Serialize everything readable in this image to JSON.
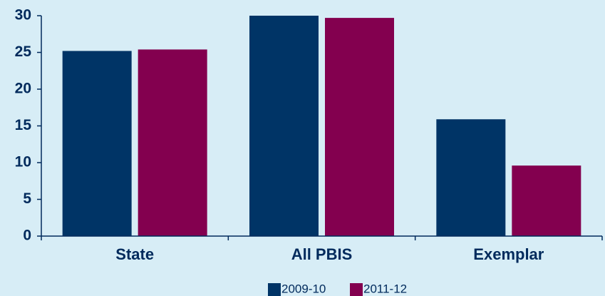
{
  "chart_data": {
    "type": "bar",
    "categories": [
      "State",
      "All PBIS",
      "Exemplar"
    ],
    "series": [
      {
        "name": "2009-10",
        "color": "#003466",
        "values": [
          25.2,
          30,
          15.9
        ]
      },
      {
        "name": "2011-12",
        "color": "#83004f",
        "values": [
          25.4,
          29.7,
          9.6
        ]
      }
    ],
    "ylim": [
      0,
      30
    ],
    "yticks": [
      0,
      5,
      10,
      15,
      20,
      25,
      30
    ],
    "grid": false,
    "legend": "bottom"
  }
}
